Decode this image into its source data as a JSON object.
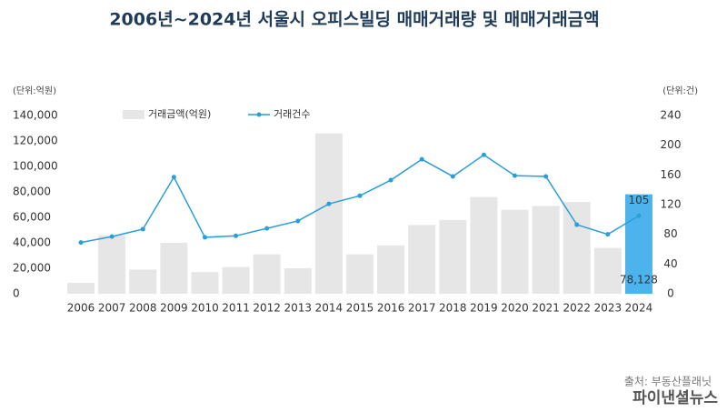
{
  "chart_data": {
    "type": "bar_line",
    "title": "2006년~2024년 서울시 오피스빌딩 매매거래량 및 매매거래금액",
    "y_unit_label": "(단위:억원)",
    "y2_unit_label": "(단위:건)",
    "source": "출처: 부동산플래닛",
    "watermark": "파이낸셜뉴스",
    "categories": [
      "2006",
      "2007",
      "2008",
      "2009",
      "2010",
      "2011",
      "2012",
      "2013",
      "2014",
      "2015",
      "2016",
      "2017",
      "2018",
      "2019",
      "2020",
      "2021",
      "2022",
      "2023",
      "2024"
    ],
    "series": [
      {
        "name": "거래금액(억원)",
        "kind": "bar",
        "color": "#e6e6e6",
        "highlight_color": "#4db3ec",
        "values": [
          8500,
          46000,
          19000,
          40000,
          17000,
          21000,
          31000,
          20000,
          126000,
          31000,
          38000,
          54000,
          58000,
          76000,
          66000,
          69000,
          72000,
          36000,
          78128
        ],
        "value_labels": [
          null,
          null,
          null,
          null,
          null,
          null,
          null,
          null,
          null,
          null,
          null,
          null,
          null,
          null,
          null,
          null,
          null,
          null,
          "78,128"
        ]
      },
      {
        "name": "거래건수",
        "kind": "line",
        "axis": "y2",
        "color": "#2a9fd6",
        "values": [
          69,
          77,
          87,
          157,
          76,
          78,
          88,
          98,
          121,
          132,
          153,
          181,
          158,
          187,
          159,
          158,
          93,
          80,
          105
        ],
        "value_labels": [
          null,
          null,
          null,
          null,
          null,
          null,
          null,
          null,
          null,
          null,
          null,
          null,
          null,
          null,
          null,
          null,
          null,
          null,
          "105"
        ]
      }
    ],
    "ylim": [
      0,
      140000
    ],
    "yticks": [
      0,
      {
        "value": 20000,
        "label": "20,000"
      },
      {
        "value": 40000,
        "label": "40,000"
      },
      {
        "value": 60000,
        "label": "60,000"
      },
      {
        "value": 80000,
        "label": "80,000"
      },
      {
        "value": 100000,
        "label": "100,000"
      },
      {
        "value": 120000,
        "label": "120,000"
      },
      {
        "value": 140000,
        "label": "140,000"
      }
    ],
    "y2lim": [
      0,
      240
    ],
    "y2ticks": [
      0,
      40,
      80,
      120,
      160,
      200,
      240
    ],
    "grid": false,
    "legend": "top"
  }
}
